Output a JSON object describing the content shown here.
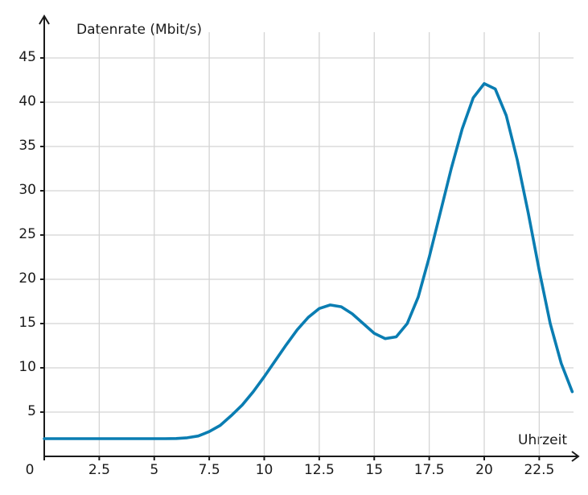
{
  "chart_data": {
    "type": "line",
    "y_label": "Datenrate (Mbit/s)",
    "x_label": "Uhrzeit",
    "x": [
      0,
      0.5,
      1,
      1.5,
      2,
      2.5,
      3,
      3.5,
      4,
      4.5,
      5,
      5.5,
      6,
      6.5,
      7,
      7.5,
      8,
      8.5,
      9,
      9.5,
      10,
      10.5,
      11,
      11.5,
      12,
      12.5,
      13,
      13.5,
      14,
      14.5,
      15,
      15.5,
      16,
      16.5,
      17,
      17.5,
      18,
      18.5,
      19,
      19.5,
      20,
      20.5,
      21,
      21.5,
      22,
      22.5,
      23,
      23.5,
      24
    ],
    "series": [
      {
        "color": "#0a7db2",
        "values": [
          2,
          2,
          2,
          2,
          2,
          2,
          2,
          2,
          2,
          2,
          2,
          2,
          2.02,
          2.1,
          2.3,
          2.8,
          3.5,
          4.6,
          5.8,
          7.3,
          9,
          10.8,
          12.6,
          14.3,
          15.7,
          16.7,
          17.1,
          16.9,
          16.1,
          15,
          13.9,
          13.3,
          13.5,
          15,
          18,
          22.5,
          27.5,
          32.5,
          37,
          40.5,
          42.1,
          41.5,
          38.5,
          33.5,
          27.5,
          21,
          15,
          10.5,
          7.3
        ]
      }
    ],
    "xlim": [
      0,
      24
    ],
    "ylim": [
      0,
      49
    ],
    "xticks": [
      0,
      2.5,
      5,
      7.5,
      10,
      12.5,
      15,
      17.5,
      20,
      22.5
    ],
    "yticks": [
      5,
      10,
      15,
      20,
      25,
      30,
      35,
      40,
      45
    ],
    "grid": true
  }
}
